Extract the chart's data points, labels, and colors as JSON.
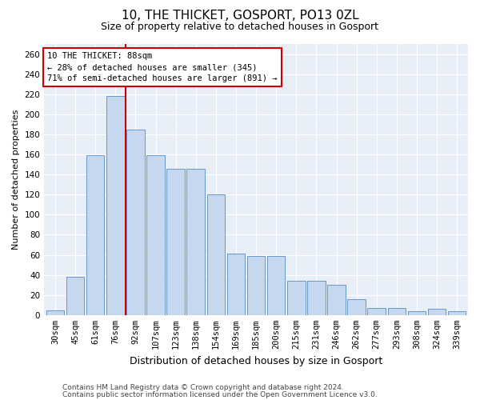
{
  "title1": "10, THE THICKET, GOSPORT, PO13 0ZL",
  "title2": "Size of property relative to detached houses in Gosport",
  "xlabel": "Distribution of detached houses by size in Gosport",
  "ylabel": "Number of detached properties",
  "categories": [
    "30sqm",
    "45sqm",
    "61sqm",
    "76sqm",
    "92sqm",
    "107sqm",
    "123sqm",
    "138sqm",
    "154sqm",
    "169sqm",
    "185sqm",
    "200sqm",
    "215sqm",
    "231sqm",
    "246sqm",
    "262sqm",
    "277sqm",
    "293sqm",
    "308sqm",
    "324sqm",
    "339sqm"
  ],
  "values": [
    5,
    38,
    159,
    218,
    185,
    159,
    146,
    146,
    120,
    61,
    59,
    59,
    34,
    34,
    30,
    16,
    7,
    7,
    4,
    6,
    4
  ],
  "bar_color": "#c5d8f0",
  "bar_edge_color": "#6898c8",
  "vline_x_index": 3.5,
  "vline_color": "#cc0000",
  "annotation_text": "10 THE THICKET: 88sqm\n← 28% of detached houses are smaller (345)\n71% of semi-detached houses are larger (891) →",
  "annotation_box_facecolor": "white",
  "annotation_box_edgecolor": "#cc0000",
  "ylim": [
    0,
    270
  ],
  "yticks": [
    0,
    20,
    40,
    60,
    80,
    100,
    120,
    140,
    160,
    180,
    200,
    220,
    240,
    260
  ],
  "bg_color": "#ffffff",
  "plot_bg_color": "#e8eef8",
  "footer1": "Contains HM Land Registry data © Crown copyright and database right 2024.",
  "footer2": "Contains public sector information licensed under the Open Government Licence v3.0.",
  "title1_fontsize": 11,
  "title2_fontsize": 9,
  "ylabel_fontsize": 8,
  "xlabel_fontsize": 9,
  "tick_fontsize": 7.5,
  "footer_fontsize": 6.5
}
